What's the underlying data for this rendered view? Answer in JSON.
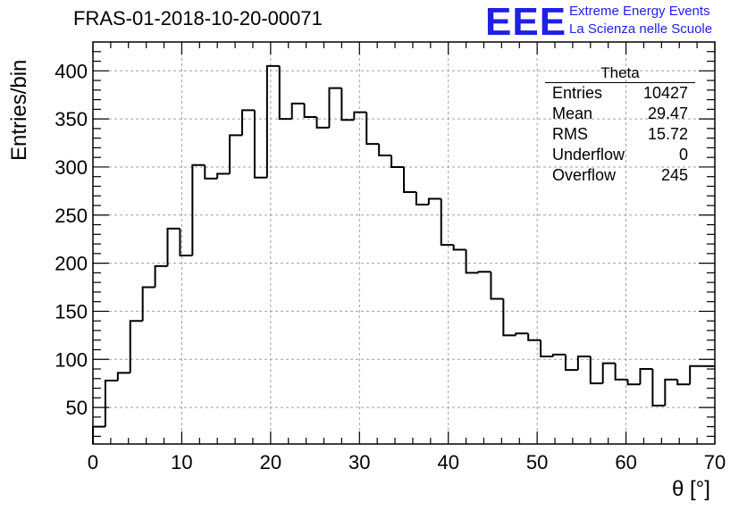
{
  "title": "FRAS-01-2018-10-20-00071",
  "logo": {
    "mark": "EEE",
    "line1": "Extreme Energy Events",
    "line2": "La Scienza nelle Scuole"
  },
  "stats_box": {
    "title": "Theta",
    "rows": [
      {
        "label": "Entries",
        "value": "10427"
      },
      {
        "label": "Mean",
        "value": "29.47"
      },
      {
        "label": "RMS",
        "value": "15.72"
      },
      {
        "label": "Underflow",
        "value": "0"
      },
      {
        "label": "Overflow",
        "value": "245"
      }
    ]
  },
  "chart_data": {
    "type": "bar",
    "style": "step-histogram",
    "xlabel": "θ [°]",
    "ylabel": "Entries/bin",
    "xlim": [
      0,
      70
    ],
    "ylim": [
      12,
      430
    ],
    "grid": true,
    "bin_width": 1.4,
    "bin_edges_start": 0,
    "xticks": [
      "0",
      "10",
      "20",
      "30",
      "40",
      "50",
      "60",
      "70"
    ],
    "yticks": [
      "50",
      "100",
      "150",
      "200",
      "250",
      "300",
      "350",
      "400"
    ],
    "values": [
      30,
      78,
      86,
      140,
      175,
      197,
      236,
      208,
      302,
      288,
      293,
      333,
      359,
      289,
      405,
      350,
      366,
      352,
      341,
      382,
      349,
      357,
      324,
      312,
      300,
      274,
      261,
      267,
      219,
      214,
      190,
      191,
      163,
      125,
      127,
      120,
      103,
      105,
      89,
      103,
      75,
      96,
      79,
      74,
      90,
      52,
      79,
      74,
      93,
      93
    ],
    "colors": {
      "line": "#000000",
      "grid": "#a0a0a0",
      "logo": "#1f1fe6"
    }
  }
}
